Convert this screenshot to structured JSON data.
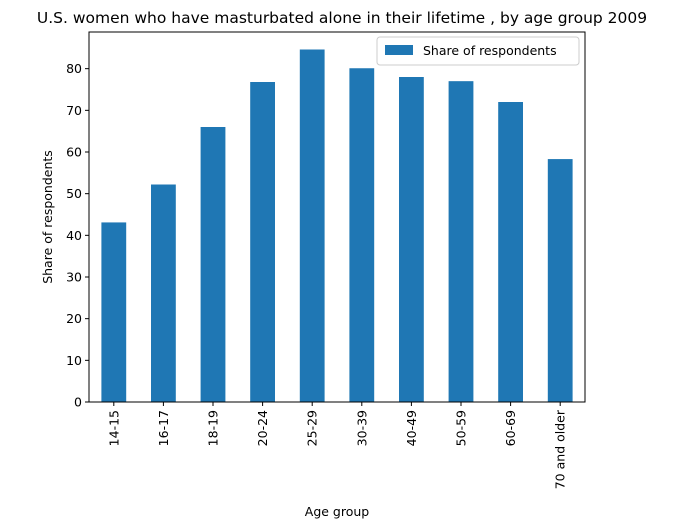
{
  "chart_data": {
    "type": "bar",
    "title": "U.S. women who have masturbated alone in their lifetime , by age group 2009",
    "xlabel": "Age group",
    "ylabel": "Share of respondents",
    "categories": [
      "14-15",
      "16-17",
      "18-19",
      "20-24",
      "25-29",
      "30-39",
      "40-49",
      "50-59",
      "60-69",
      "70 and older"
    ],
    "series": [
      {
        "name": "Share of respondents",
        "values": [
          43.1,
          52.2,
          66.0,
          76.8,
          84.6,
          80.1,
          78.0,
          77.0,
          72.0,
          58.3
        ],
        "color": "#1f77b4"
      }
    ],
    "ylim": [
      0,
      88.8
    ],
    "yticks": [
      0,
      10,
      20,
      30,
      40,
      50,
      60,
      70,
      80
    ],
    "grid": false,
    "legend_position": "top-right"
  }
}
